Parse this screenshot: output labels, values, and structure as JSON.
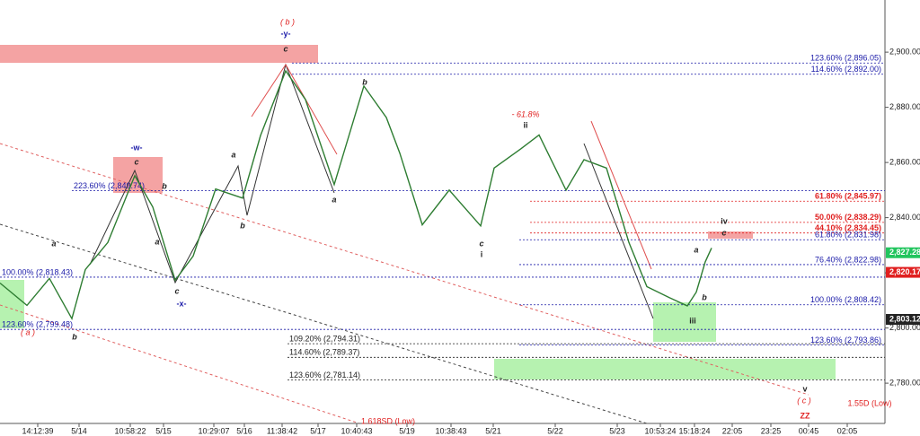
{
  "chart_data": {
    "type": "line",
    "x": [
      0,
      30,
      55,
      80,
      95,
      120,
      150,
      170,
      195,
      215,
      240,
      270,
      290,
      318,
      340,
      372,
      405,
      430,
      445,
      470,
      500,
      535,
      550,
      580,
      600,
      630,
      650,
      675,
      700,
      720,
      745,
      765,
      775,
      785,
      792
    ],
    "series": [
      {
        "color": "#2e7d32",
        "values": [
          2816.3,
          2808.2,
          2818.0,
          2803.4,
          2821.2,
          2831.0,
          2855.2,
          2843.9,
          2817.3,
          2826.1,
          2850.4,
          2847.1,
          2869.8,
          2893.2,
          2882.8,
          2852.0,
          2887.7,
          2876.3,
          2863.4,
          2837.4,
          2850.0,
          2837.0,
          2858.0,
          2865.0,
          2870.0,
          2850.0,
          2861.0,
          2858.0,
          2831.0,
          2815.0,
          2811.0,
          2808.0,
          2813.0,
          2824.0,
          2829.0
        ]
      }
    ],
    "xlim": [
      0,
      985
    ],
    "xticks": [
      {
        "value": 42,
        "label": "14:12:39"
      },
      {
        "value": 88,
        "label": "5/14"
      },
      {
        "value": 145,
        "label": "10:58:22"
      },
      {
        "value": 182,
        "label": "5/15"
      },
      {
        "value": 238,
        "label": "10:29:07"
      },
      {
        "value": 272,
        "label": "5/16"
      },
      {
        "value": 314,
        "label": "11:38:42"
      },
      {
        "value": 354,
        "label": "5/17"
      },
      {
        "value": 397,
        "label": "10:40:43"
      },
      {
        "value": 453,
        "label": "5/19"
      },
      {
        "value": 502,
        "label": "10:38:43"
      },
      {
        "value": 549,
        "label": "5/21"
      },
      {
        "value": 618,
        "label": "5/22"
      },
      {
        "value": 687,
        "label": "5/23"
      },
      {
        "value": 735,
        "label": "10:53:24"
      },
      {
        "value": 773,
        "label": "15:18:24"
      },
      {
        "value": 815,
        "label": "22:05"
      },
      {
        "value": 858,
        "label": "23:25"
      },
      {
        "value": 900,
        "label": "00:45"
      },
      {
        "value": 943,
        "label": "02:05"
      }
    ],
    "ylim": [
      2765.4,
      2918.9
    ],
    "yticks": [
      {
        "value": 2780,
        "label": "2,780.00"
      },
      {
        "value": 2800,
        "label": "2,800.00"
      },
      {
        "value": 2820,
        "label": "2,820.00"
      },
      {
        "value": 2840,
        "label": "2,840.00"
      },
      {
        "value": 2860,
        "label": "2,860.00"
      },
      {
        "value": 2880,
        "label": "2,880.00"
      },
      {
        "value": 2900,
        "label": "2,900.00"
      }
    ],
    "levels": [
      {
        "value": 2896.05,
        "label": "123.60% (2,896.05)",
        "color": "#1a1aa8"
      },
      {
        "value": 2892.0,
        "label": "114.60% (2,892.00)",
        "color": "#1a1aa8"
      },
      {
        "value": 2849.74,
        "label": "223.60% (2,849.74)",
        "color": "#1a1aa8"
      },
      {
        "value": 2818.43,
        "label": "100.00% (2,818.43)",
        "color": "#1a1aa8"
      },
      {
        "value": 2799.48,
        "label": "123.60% (2,799.48)",
        "color": "#1a1aa8"
      },
      {
        "value": 2845.97,
        "label": "61.80% (2,845.97)",
        "color": "#e02020"
      },
      {
        "value": 2838.29,
        "label": "50.00% (2,838.29)",
        "color": "#e02020"
      },
      {
        "value": 2834.45,
        "label": "44.10% (2,834.45)",
        "color": "#e02020"
      },
      {
        "value": 2831.98,
        "label": "61.80% (2,831.98)",
        "color": "#1a1aa8"
      },
      {
        "value": 2822.98,
        "label": "76.40% (2,822.98)",
        "color": "#1a1aa8"
      },
      {
        "value": 2808.42,
        "label": "100.00% (2,808.42)",
        "color": "#1a1aa8"
      },
      {
        "value": 2793.86,
        "label": "123.60% (2,793.86)",
        "color": "#1a1aa8"
      },
      {
        "value": 2794.31,
        "label": "109.20% (2,794.31)",
        "color": "#222222"
      },
      {
        "value": 2789.37,
        "label": "114.60% (2,789.37)",
        "color": "#222222"
      },
      {
        "value": 2781.14,
        "label": "123.60% (2,781.14)",
        "color": "#222222"
      }
    ],
    "price_tags": [
      {
        "value": 2827.28,
        "label": "2,827.28",
        "color": "#22c55e"
      },
      {
        "value": 2820.17,
        "label": "2,820.17",
        "color": "#e02020"
      },
      {
        "value": 2803.12,
        "label": "2,803.12",
        "color": "#222222"
      }
    ],
    "annotations": [
      {
        "text": "( b )",
        "color": "#e02020"
      },
      {
        "text": "-y-",
        "color": "#1a1aa8"
      },
      {
        "text": "c",
        "color": "#222222"
      },
      {
        "text": "-w-",
        "color": "#1a1aa8"
      },
      {
        "text": "c",
        "color": "#222222"
      },
      {
        "text": "a",
        "color": "#222222"
      },
      {
        "text": "a",
        "color": "#222222"
      },
      {
        "text": "a",
        "color": "#222222"
      },
      {
        "text": "a",
        "color": "#222222"
      },
      {
        "text": "a",
        "color": "#222222"
      },
      {
        "text": "b",
        "color": "#222222"
      },
      {
        "text": "b",
        "color": "#222222"
      },
      {
        "text": "b",
        "color": "#222222"
      },
      {
        "text": "b",
        "color": "#222222"
      },
      {
        "text": "b",
        "color": "#222222"
      },
      {
        "text": "c",
        "color": "#222222"
      },
      {
        "text": "-x-",
        "color": "#1a1aa8"
      },
      {
        "text": "( a )",
        "color": "#e02020"
      },
      {
        "text": "- 61.8%",
        "color": "#e02020"
      },
      {
        "text": "ii",
        "color": "#222222"
      },
      {
        "text": "c",
        "color": "#222222"
      },
      {
        "text": "i",
        "color": "#222222"
      },
      {
        "text": "iv",
        "color": "#222222"
      },
      {
        "text": "c",
        "color": "#222222"
      },
      {
        "text": "iii",
        "color": "#222222"
      },
      {
        "text": "v",
        "color": "#222222"
      },
      {
        "text": "( c )",
        "color": "#e02020"
      },
      {
        "text": "ZZ",
        "color": "#e02020"
      },
      {
        "text": "1.618SD (Low)",
        "color": "#e02020"
      },
      {
        "text": "1.55D (Low)",
        "color": "#e02020"
      }
    ]
  }
}
